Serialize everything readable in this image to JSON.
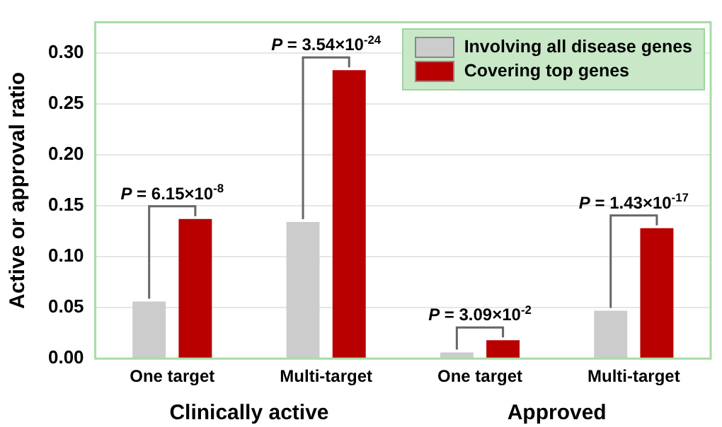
{
  "chart_data": {
    "type": "bar",
    "ylabel": "Active or approval ratio",
    "categories": [
      "One target",
      "Multi-target",
      "One target",
      "Multi-target"
    ],
    "series": [
      {
        "name": "Involving all disease genes",
        "color": "#cccccc",
        "values": [
          0.056,
          0.134,
          0.006,
          0.047
        ]
      },
      {
        "name": "Covering top genes",
        "color": "#b80000",
        "values": [
          0.137,
          0.283,
          0.018,
          0.128
        ]
      }
    ],
    "ylim": [
      0,
      0.33
    ],
    "yticks": [
      {
        "value": 0,
        "label": "0.00"
      },
      {
        "value": 0.05,
        "label": "0.05"
      },
      {
        "value": 0.1,
        "label": "0.10"
      },
      {
        "value": 0.15,
        "label": "0.15"
      },
      {
        "value": 0.2,
        "label": "0.20"
      },
      {
        "value": 0.25,
        "label": "0.25"
      },
      {
        "value": 0.3,
        "label": "0.30"
      }
    ],
    "grid": "y",
    "legend": "top right",
    "annotations": [
      {
        "text": "P = 6.15×10$^{-8}$",
        "x": "One target",
        "y": 0.137
      },
      {
        "text": "P = 3.54×10$^{-24}$",
        "x": "Multi-target",
        "y": 0.283
      },
      {
        "text": "P = 3.09×10$^{-2}$",
        "y": 0.018
      },
      {
        "text": "P = 1.43×10$^{-17}$",
        "y": 0.128
      },
      "Clinically active",
      "Approved"
    ]
  }
}
